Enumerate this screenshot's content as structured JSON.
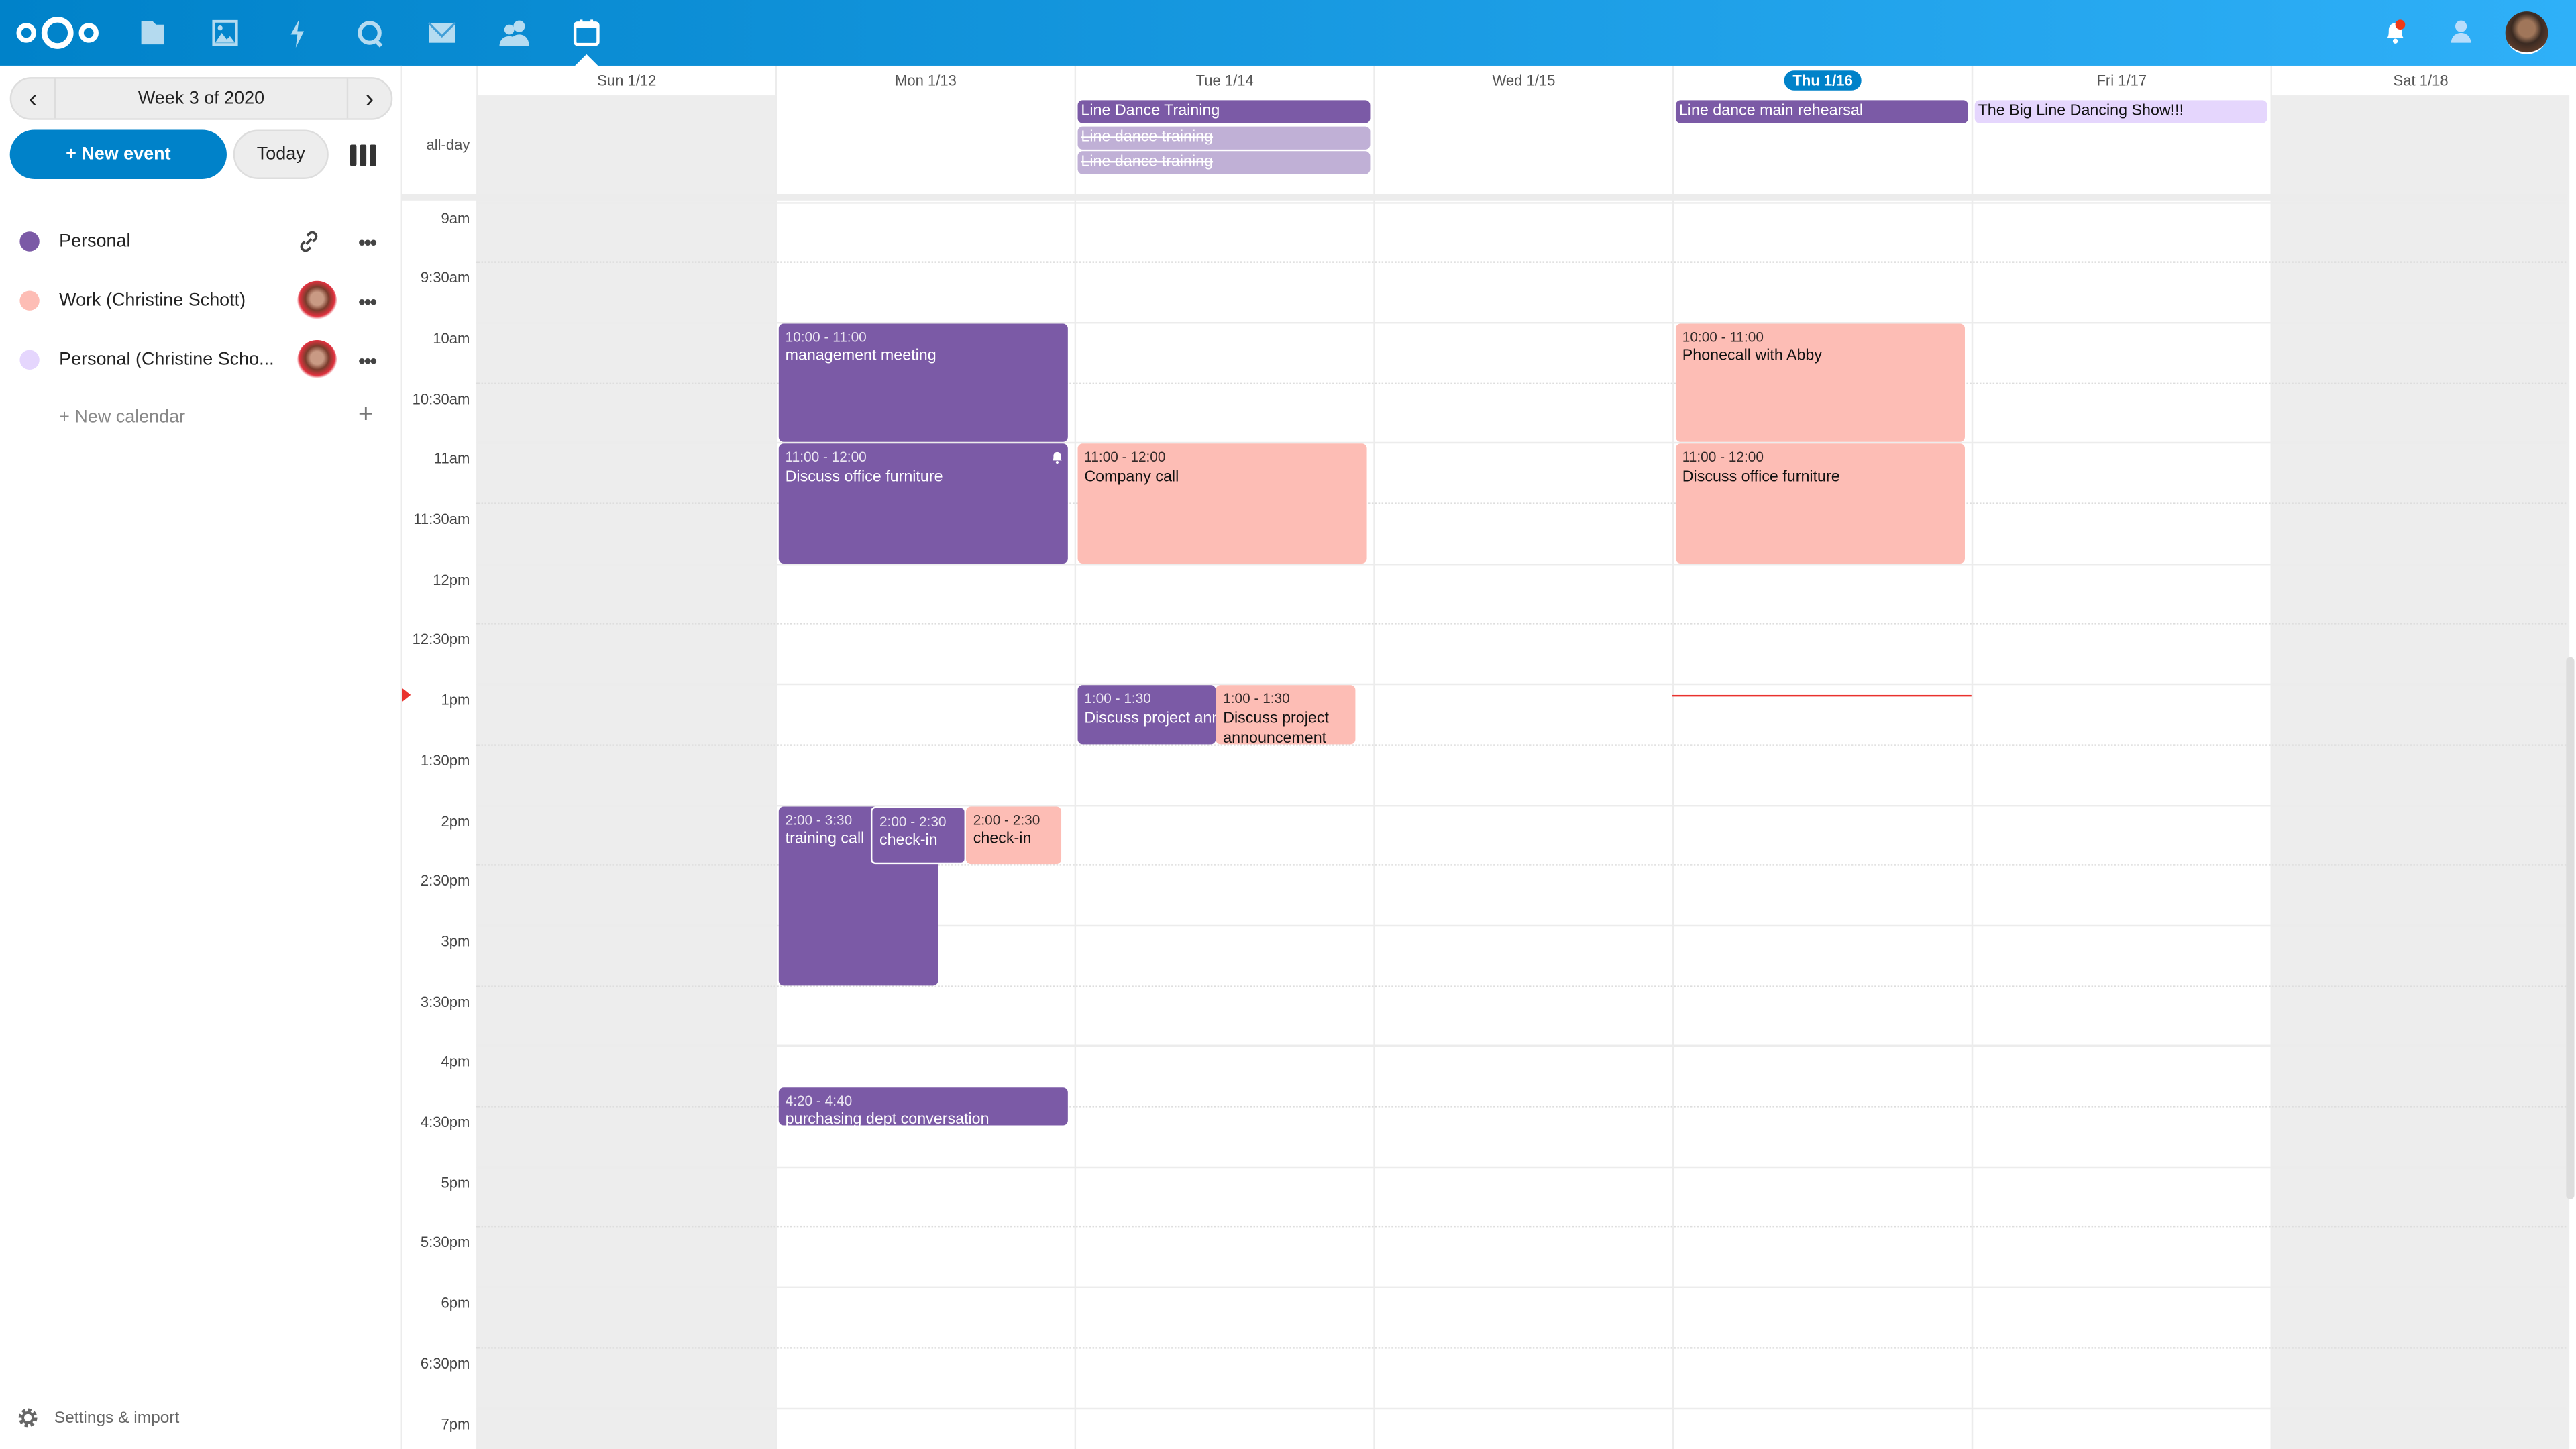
{
  "colors": {
    "brand": "#0082c9",
    "personal": "#7b5aa6",
    "work": "#fdbdb5",
    "personal_shared": "#e5d6fd",
    "cancelled": "#c0b0d6",
    "now": "#e9322d"
  },
  "topbar": {
    "apps": [
      "files-icon",
      "photos-icon",
      "activity-icon",
      "talk-icon",
      "mail-icon",
      "contacts-icon",
      "calendar-icon"
    ],
    "active": "calendar-icon",
    "right": [
      "notifications-icon",
      "contacts-menu-icon",
      "user-avatar"
    ]
  },
  "sidebar": {
    "week_label": "Week 3 of 2020",
    "new_event": "+ New event",
    "today": "Today",
    "calendars": [
      {
        "name": "Personal",
        "color": "#7b5aa6",
        "action": "share-link-icon"
      },
      {
        "name": "Work (Christine Schott)",
        "color": "#fdbdb5",
        "action": "owner-avatar"
      },
      {
        "name": "Personal (Christine Scho...",
        "color": "#e5d6fd",
        "action": "owner-avatar"
      }
    ],
    "new_calendar": "+ New calendar",
    "settings": "Settings & import"
  },
  "calendar": {
    "days": [
      "Sun 1/12",
      "Mon 1/13",
      "Tue 1/14",
      "Wed 1/15",
      "Thu 1/16",
      "Fri 1/17",
      "Sat 1/18"
    ],
    "today_index": 4,
    "allday_label": "all-day",
    "time_labels": [
      "9am",
      "9:30am",
      "10am",
      "10:30am",
      "11am",
      "11:30am",
      "12pm",
      "12:30pm",
      "1pm",
      "1:30pm",
      "2pm",
      "2:30pm",
      "3pm",
      "3:30pm",
      "4pm",
      "4:30pm",
      "5pm",
      "5:30pm",
      "6pm",
      "6:30pm",
      "7pm"
    ],
    "allday_events": [
      {
        "day": 2,
        "title": "Line Dance Training",
        "calendar": "personal",
        "cancelled": false
      },
      {
        "day": 2,
        "title": "Line dance training",
        "calendar": "personal",
        "cancelled": true
      },
      {
        "day": 2,
        "title": "Line dance training",
        "calendar": "personal",
        "cancelled": true
      },
      {
        "day": 4,
        "title": "Line dance main rehearsal",
        "calendar": "personal",
        "cancelled": false
      },
      {
        "day": 5,
        "title": "The Big Line Dancing Show!!!",
        "calendar": "personal_shared",
        "cancelled": false
      }
    ],
    "events": [
      {
        "day": 1,
        "start": 10,
        "end": 11,
        "time": "10:00 - 11:00",
        "title": "management meeting",
        "calendar": "personal"
      },
      {
        "day": 1,
        "start": 11,
        "end": 12,
        "time": "11:00 - 12:00",
        "title": "Discuss office furniture",
        "calendar": "personal",
        "alarm": true
      },
      {
        "day": 2,
        "start": 11,
        "end": 12,
        "time": "11:00 - 12:00",
        "title": "Company call",
        "calendar": "work"
      },
      {
        "day": 4,
        "start": 10,
        "end": 11,
        "time": "10:00 - 11:00",
        "title": "Phonecall with Abby",
        "calendar": "work"
      },
      {
        "day": 4,
        "start": 11,
        "end": 12,
        "time": "11:00 - 12:00",
        "title": "Discuss office furniture",
        "calendar": "work"
      },
      {
        "day": 2,
        "start": 13,
        "end": 13.5,
        "time": "1:00 - 1:30",
        "title": "Discuss project announcement",
        "calendar": "personal"
      },
      {
        "day": 2,
        "start": 13,
        "end": 13.5,
        "time": "1:00 - 1:30",
        "title": "Discuss project announcement",
        "calendar": "work"
      },
      {
        "day": 1,
        "start": 14,
        "end": 15.5,
        "time": "2:00 - 3:30",
        "title": "training call",
        "calendar": "personal"
      },
      {
        "day": 1,
        "start": 14,
        "end": 14.5,
        "time": "2:00 - 2:30",
        "title": "check-in",
        "calendar": "personal"
      },
      {
        "day": 1,
        "start": 14,
        "end": 14.5,
        "time": "2:00 - 2:30",
        "title": "check-in",
        "calendar": "work"
      },
      {
        "day": 1,
        "start": 16.333,
        "end": 16.667,
        "time": "4:20 - 4:40",
        "title": "purchasing dept conversation",
        "calendar": "personal"
      }
    ],
    "now_day": 4,
    "now_time": 13.1
  }
}
